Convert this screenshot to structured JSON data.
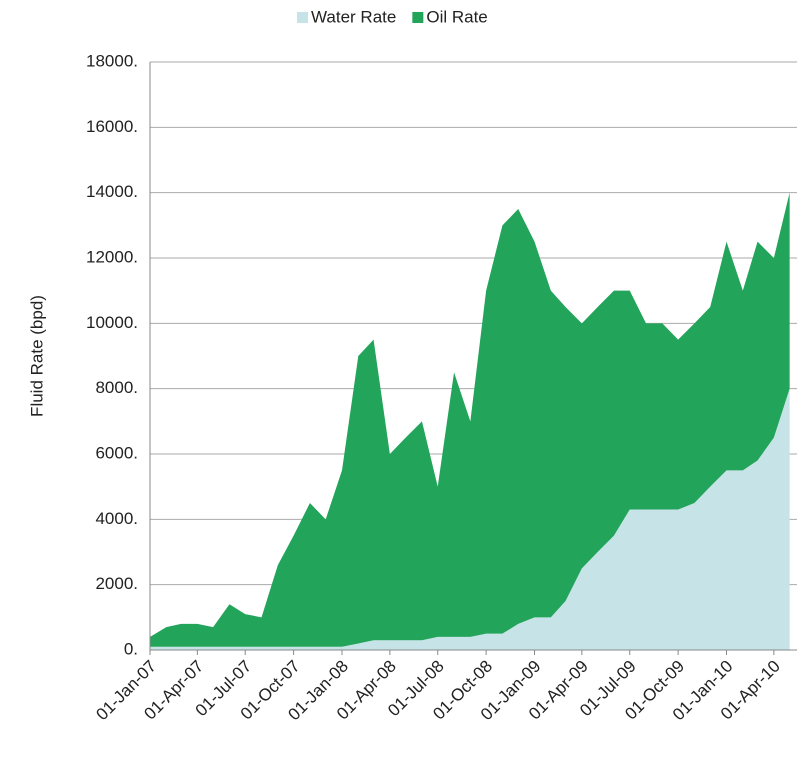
{
  "chart_data": {
    "type": "stacked-area",
    "y_label": "Fluid Rate (bpd)",
    "x": [
      "2007-01-01",
      "2007-02-01",
      "2007-03-01",
      "2007-04-01",
      "2007-05-01",
      "2007-06-01",
      "2007-07-01",
      "2007-08-01",
      "2007-09-01",
      "2007-10-01",
      "2007-11-01",
      "2007-12-01",
      "2008-01-01",
      "2008-02-01",
      "2008-03-01",
      "2008-04-01",
      "2008-05-01",
      "2008-06-01",
      "2008-07-01",
      "2008-08-01",
      "2008-09-01",
      "2008-10-01",
      "2008-11-01",
      "2008-12-01",
      "2009-01-01",
      "2009-02-01",
      "2009-03-01",
      "2009-04-01",
      "2009-05-01",
      "2009-06-01",
      "2009-07-01",
      "2009-08-01",
      "2009-09-01",
      "2009-10-01",
      "2009-11-01",
      "2009-12-01",
      "2010-01-01",
      "2010-02-01",
      "2010-03-01",
      "2010-04-01",
      "2010-05-01"
    ],
    "series": [
      {
        "name": "Water Rate",
        "color": "#c6e4e8",
        "values": [
          100,
          100,
          100,
          100,
          100,
          100,
          100,
          100,
          100,
          100,
          100,
          100,
          100,
          200,
          300,
          300,
          300,
          300,
          400,
          400,
          400,
          500,
          500,
          800,
          1000,
          1000,
          1500,
          2500,
          3000,
          3500,
          4300,
          4300,
          4300,
          4300,
          4500,
          5000,
          5500,
          5500,
          5800,
          6500,
          8000
        ]
      },
      {
        "name": "Oil Rate",
        "color": "#22a45a",
        "values": [
          300,
          600,
          700,
          700,
          600,
          1300,
          1000,
          900,
          2500,
          3400,
          4400,
          3900,
          5400,
          8800,
          9200,
          5700,
          6200,
          6700,
          4600,
          8100,
          6600,
          10500,
          12500,
          12700,
          11500,
          10000,
          9000,
          7500,
          7500,
          7500,
          6700,
          5700,
          5700,
          5200,
          5500,
          5500,
          7000,
          5500,
          6700,
          5500,
          6000
        ]
      }
    ],
    "xlim": [
      "2007-01-01",
      "2010-05-15"
    ],
    "xticks": [
      {
        "value": "2007-01-01",
        "label": "01-Jan-07"
      },
      {
        "value": "2007-04-01",
        "label": "01-Apr-07"
      },
      {
        "value": "2007-07-01",
        "label": "01-Jul-07"
      },
      {
        "value": "2007-10-01",
        "label": "01-Oct-07"
      },
      {
        "value": "2008-01-01",
        "label": "01-Jan-08"
      },
      {
        "value": "2008-04-01",
        "label": "01-Apr-08"
      },
      {
        "value": "2008-07-01",
        "label": "01-Jul-08"
      },
      {
        "value": "2008-10-01",
        "label": "01-Oct-08"
      },
      {
        "value": "2009-01-01",
        "label": "01-Jan-09"
      },
      {
        "value": "2009-04-01",
        "label": "01-Apr-09"
      },
      {
        "value": "2009-07-01",
        "label": "01-Jul-09"
      },
      {
        "value": "2009-10-01",
        "label": "01-Oct-09"
      },
      {
        "value": "2010-01-01",
        "label": "01-Jan-10"
      },
      {
        "value": "2010-04-01",
        "label": "01-Apr-10"
      }
    ],
    "ylim": [
      0,
      18000
    ],
    "yticks": [
      {
        "value": 0,
        "label": "0."
      },
      {
        "value": 2000,
        "label": "2000."
      },
      {
        "value": 4000,
        "label": "4000."
      },
      {
        "value": 6000,
        "label": "6000."
      },
      {
        "value": 8000,
        "label": "8000."
      },
      {
        "value": 10000,
        "label": "10000."
      },
      {
        "value": 12000,
        "label": "12000."
      },
      {
        "value": 14000,
        "label": "14000."
      },
      {
        "value": 16000,
        "label": "16000."
      },
      {
        "value": 18000,
        "label": "18000."
      }
    ],
    "grid": true,
    "legend": "top"
  }
}
